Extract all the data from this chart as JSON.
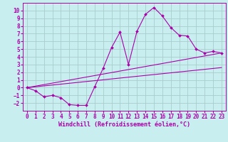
{
  "bg_color": "#c8eef0",
  "grid_color": "#aacccc",
  "line_color": "#aa00aa",
  "xlim": [
    0,
    23
  ],
  "ylim": [
    -3,
    11
  ],
  "xlabel": "Windchill (Refroidissement éolien,°C)",
  "xticks": [
    0,
    1,
    2,
    3,
    4,
    5,
    6,
    7,
    8,
    9,
    10,
    11,
    12,
    13,
    14,
    15,
    16,
    17,
    18,
    19,
    20,
    21,
    22,
    23
  ],
  "yticks": [
    -2,
    -1,
    0,
    1,
    2,
    3,
    4,
    5,
    6,
    7,
    8,
    9,
    10
  ],
  "line1_x": [
    0,
    1,
    2,
    3,
    4,
    5,
    6,
    7,
    8,
    9,
    10,
    11,
    12,
    13,
    14,
    15,
    16,
    17,
    18,
    19,
    20,
    21,
    22,
    23
  ],
  "line1_y": [
    0.0,
    -0.4,
    -1.2,
    -1.0,
    -1.3,
    -2.2,
    -2.3,
    -2.3,
    0.1,
    2.5,
    5.2,
    7.2,
    3.0,
    7.3,
    9.5,
    10.4,
    9.3,
    7.8,
    6.8,
    6.7,
    5.0,
    4.5,
    4.7,
    4.5
  ],
  "line2_x": [
    0,
    23
  ],
  "line2_y": [
    0.0,
    4.5
  ],
  "line3_x": [
    0,
    23
  ],
  "line3_y": [
    0.0,
    2.6
  ],
  "tick_fontsize": 5.5,
  "label_fontsize": 6.0
}
